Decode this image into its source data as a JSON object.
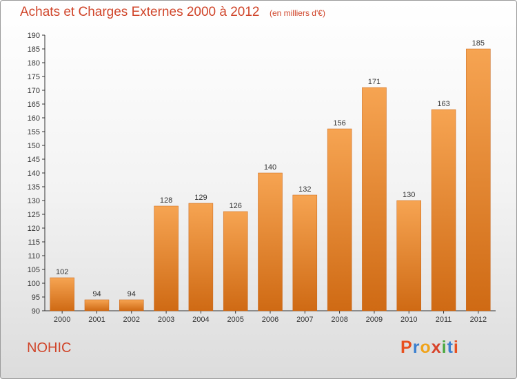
{
  "header": {
    "title": "Achats et Charges Externes 2000 à 2012",
    "subtitle": "(en milliers d'€)"
  },
  "footer": {
    "town": "NOHIC",
    "logo_letters": [
      "P",
      "r",
      "o",
      "x",
      "i",
      "t",
      "i"
    ],
    "logo_colors": [
      "#e8501e",
      "#3a7fcf",
      "#f0a31a",
      "#d8432a",
      "#49a83e",
      "#3a7fcf",
      "#e8501e"
    ]
  },
  "chart_data": {
    "type": "bar",
    "title": "Achats et Charges Externes 2000 à 2012",
    "subtitle": "(en milliers d'€)",
    "xlabel": "",
    "ylabel": "",
    "categories": [
      "2000",
      "2001",
      "2002",
      "2003",
      "2004",
      "2005",
      "2006",
      "2007",
      "2008",
      "2009",
      "2010",
      "2011",
      "2012"
    ],
    "values": [
      102,
      94,
      94,
      128,
      129,
      126,
      140,
      132,
      156,
      171,
      130,
      163,
      185
    ],
    "ylim": [
      90,
      190
    ],
    "yticks": [
      90,
      95,
      100,
      105,
      110,
      115,
      120,
      125,
      130,
      135,
      140,
      145,
      150,
      155,
      160,
      165,
      170,
      175,
      180,
      185,
      190
    ],
    "grid": false,
    "bar_color_top": "#f6a452",
    "bar_color_bottom": "#cf6a14"
  }
}
